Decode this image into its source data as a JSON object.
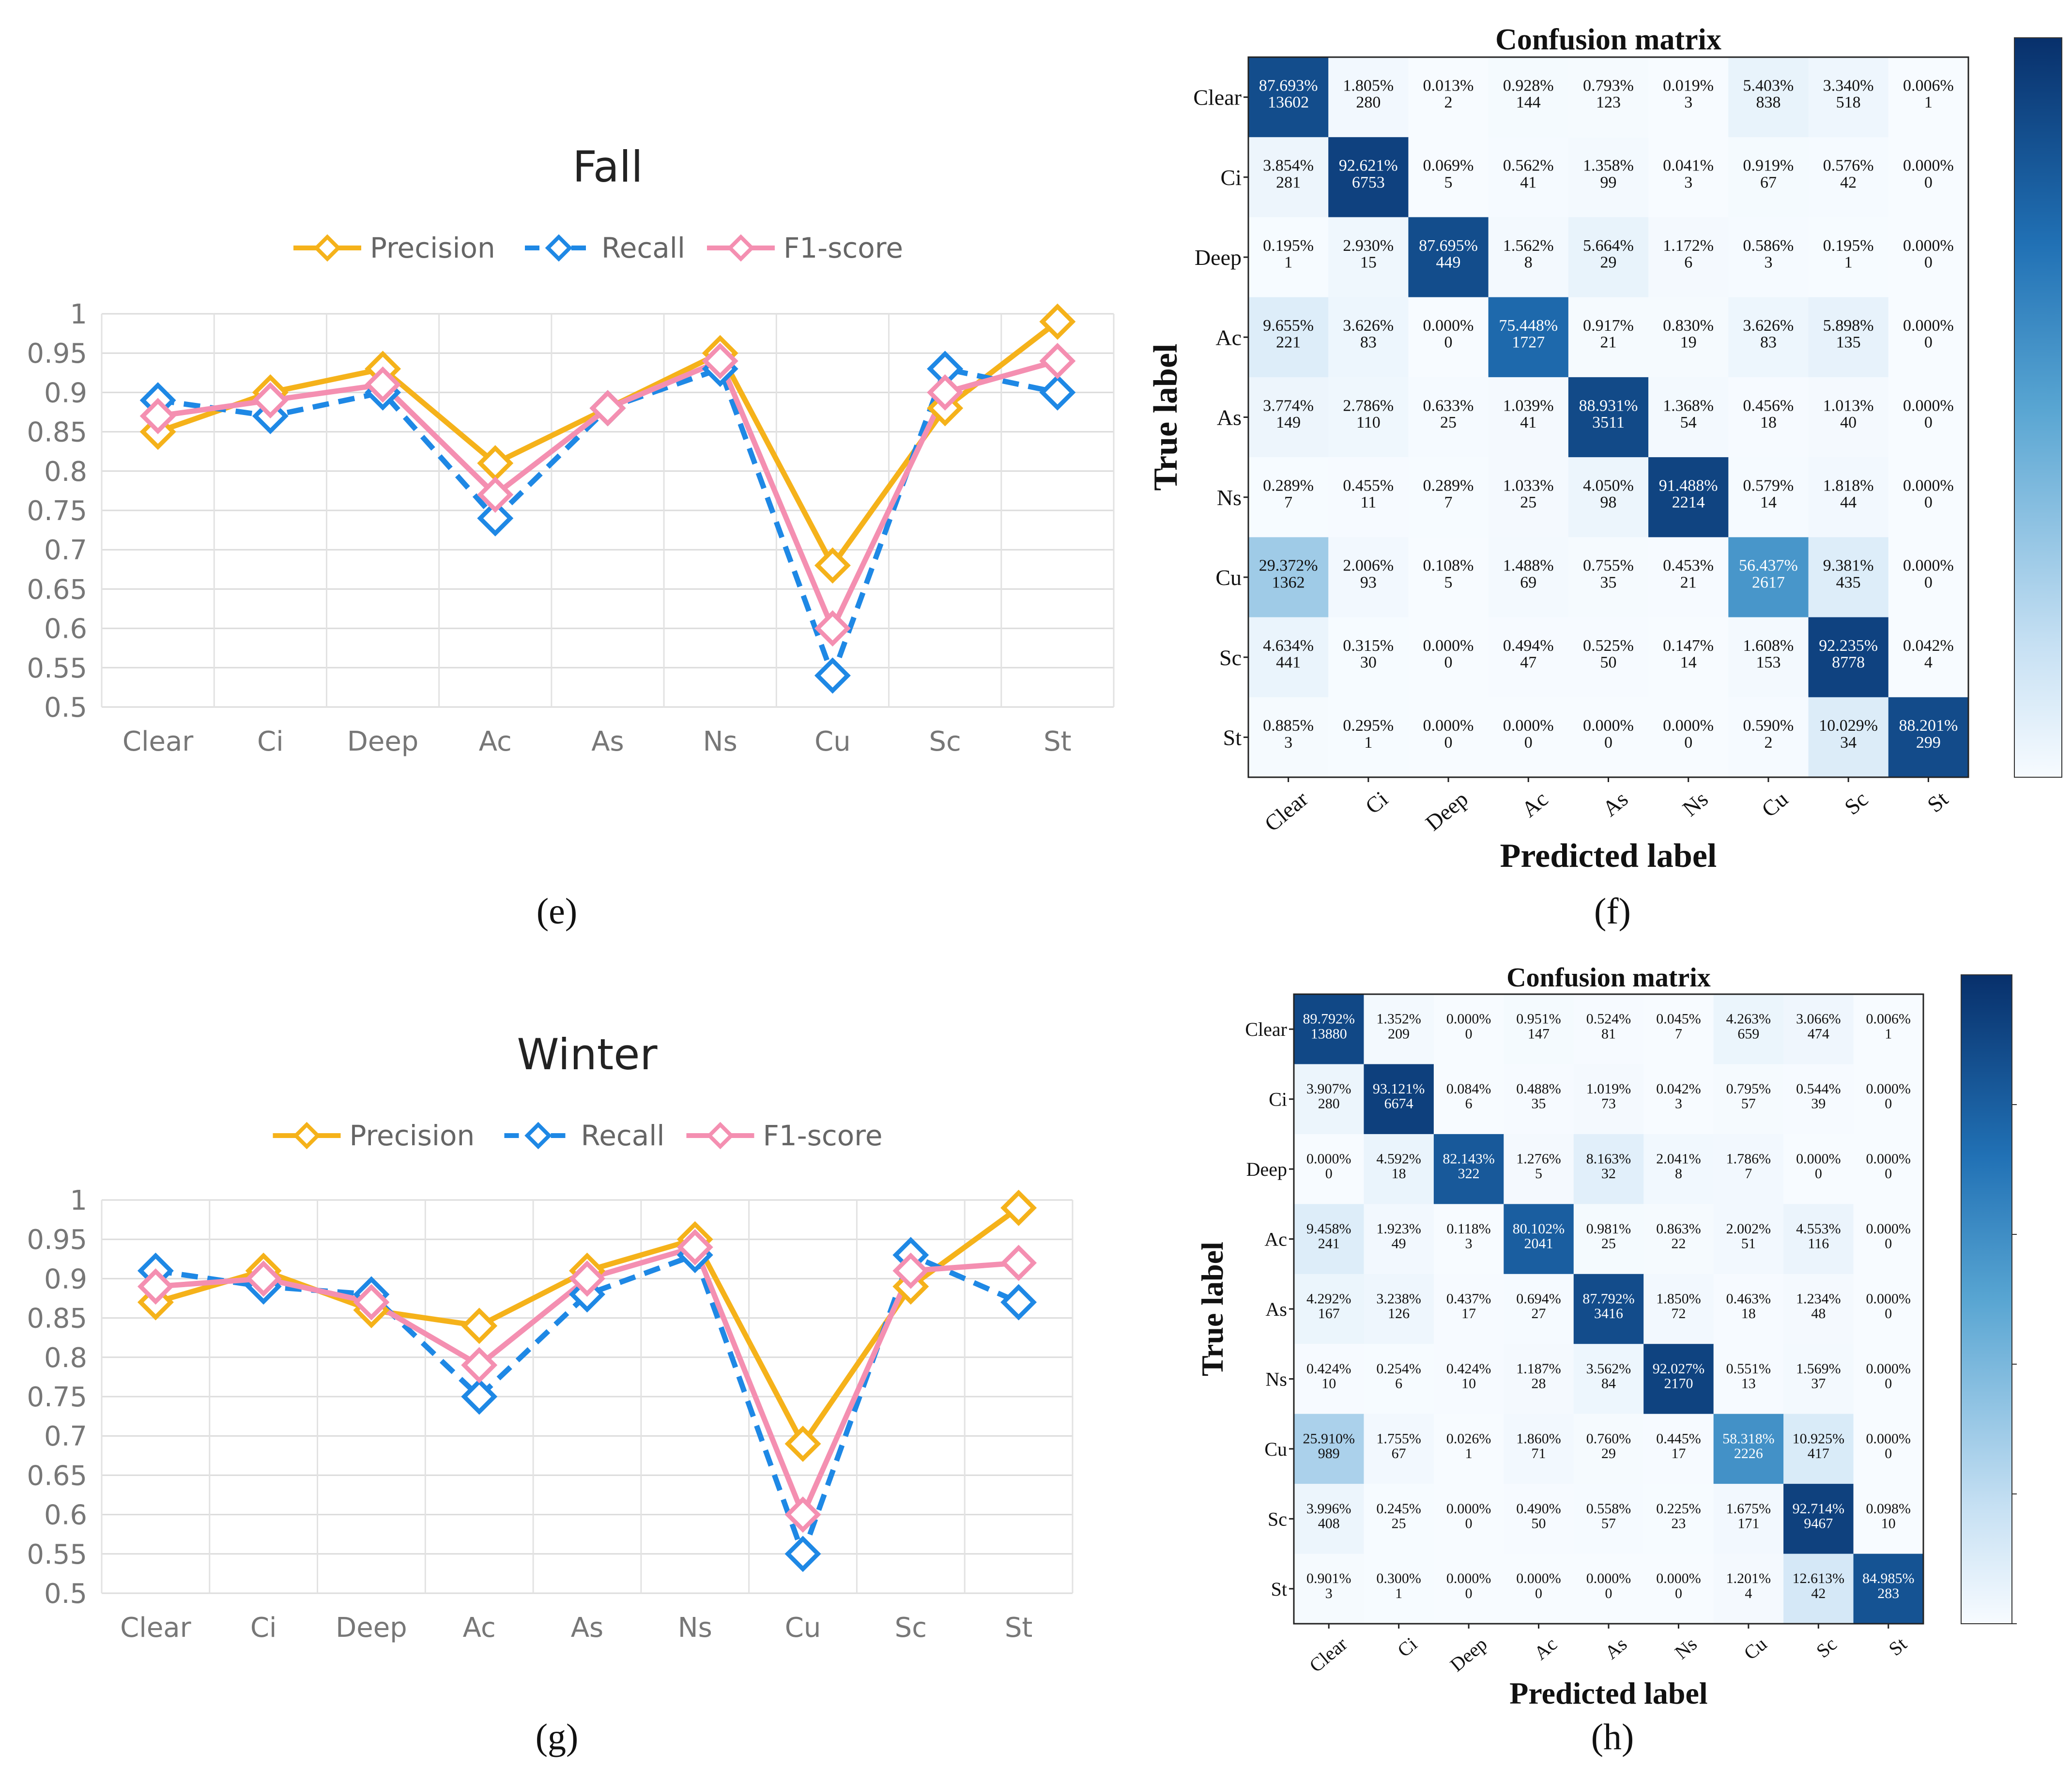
{
  "panel_labels": [
    "(e)",
    "(f)",
    "(g)",
    "(h)"
  ],
  "chart_data": [
    {
      "type": "line",
      "panel": "(e)",
      "title": "Fall",
      "categories": [
        "Clear",
        "Ci",
        "Deep",
        "Ac",
        "As",
        "Ns",
        "Cu",
        "Sc",
        "St"
      ],
      "ylim": [
        0.5,
        1
      ],
      "yticks": [
        "0.5",
        "0.55",
        "0.6",
        "0.65",
        "0.7",
        "0.75",
        "0.8",
        "0.85",
        "0.9",
        "0.95",
        "1"
      ],
      "legend": "top",
      "series": [
        {
          "name": "Precision",
          "color": "#F5B21A",
          "dash": false,
          "values": [
            0.85,
            0.9,
            0.93,
            0.81,
            0.88,
            0.95,
            0.68,
            0.88,
            0.99
          ]
        },
        {
          "name": "Recall",
          "color": "#1E88E5",
          "dash": true,
          "values": [
            0.89,
            0.87,
            0.9,
            0.74,
            0.88,
            0.93,
            0.54,
            0.93,
            0.9
          ]
        },
        {
          "name": "F1-score",
          "color": "#F48FB1",
          "dash": false,
          "values": [
            0.87,
            0.89,
            0.91,
            0.77,
            0.88,
            0.94,
            0.6,
            0.9,
            0.94
          ]
        }
      ]
    },
    {
      "type": "heatmap",
      "panel": "(f)",
      "title": "Confusion matrix",
      "xlabel": "Predicted label",
      "ylabel": "True label",
      "labels": [
        "Clear",
        "Ci",
        "Deep",
        "Ac",
        "As",
        "Ns",
        "Cu",
        "Sc",
        "St"
      ],
      "colorbar_range": [
        0,
        1
      ],
      "percent": [
        [
          "87.693%",
          "1.805%",
          "0.013%",
          "0.928%",
          "0.793%",
          "0.019%",
          "5.403%",
          "3.340%",
          "0.006%"
        ],
        [
          "3.854%",
          "92.621%",
          "0.069%",
          "0.562%",
          "1.358%",
          "0.041%",
          "0.919%",
          "0.576%",
          "0.000%"
        ],
        [
          "0.195%",
          "2.930%",
          "87.695%",
          "1.562%",
          "5.664%",
          "1.172%",
          "0.586%",
          "0.195%",
          "0.000%"
        ],
        [
          "9.655%",
          "3.626%",
          "0.000%",
          "75.448%",
          "0.917%",
          "0.830%",
          "3.626%",
          "5.898%",
          "0.000%"
        ],
        [
          "3.774%",
          "2.786%",
          "0.633%",
          "1.039%",
          "88.931%",
          "1.368%",
          "0.456%",
          "1.013%",
          "0.000%"
        ],
        [
          "0.289%",
          "0.455%",
          "0.289%",
          "1.033%",
          "4.050%",
          "91.488%",
          "0.579%",
          "1.818%",
          "0.000%"
        ],
        [
          "29.372%",
          "2.006%",
          "0.108%",
          "1.488%",
          "0.755%",
          "0.453%",
          "56.437%",
          "9.381%",
          "0.000%"
        ],
        [
          "4.634%",
          "0.315%",
          "0.000%",
          "0.494%",
          "0.525%",
          "0.147%",
          "1.608%",
          "92.235%",
          "0.042%"
        ],
        [
          "0.885%",
          "0.295%",
          "0.000%",
          "0.000%",
          "0.000%",
          "0.000%",
          "0.590%",
          "10.029%",
          "88.201%"
        ]
      ],
      "counts": [
        [
          "13602",
          "280",
          "2",
          "144",
          "123",
          "3",
          "838",
          "518",
          "1"
        ],
        [
          "281",
          "6753",
          "5",
          "41",
          "99",
          "3",
          "67",
          "42",
          "0"
        ],
        [
          "1",
          "15",
          "449",
          "8",
          "29",
          "6",
          "3",
          "1",
          "0"
        ],
        [
          "221",
          "83",
          "0",
          "1727",
          "21",
          "19",
          "83",
          "135",
          "0"
        ],
        [
          "149",
          "110",
          "25",
          "41",
          "3511",
          "54",
          "18",
          "40",
          "0"
        ],
        [
          "7",
          "11",
          "7",
          "25",
          "98",
          "2214",
          "14",
          "44",
          "0"
        ],
        [
          "1362",
          "93",
          "5",
          "69",
          "35",
          "21",
          "2617",
          "435",
          "0"
        ],
        [
          "441",
          "30",
          "0",
          "47",
          "50",
          "14",
          "153",
          "8778",
          "4"
        ],
        [
          "3",
          "1",
          "0",
          "0",
          "0",
          "0",
          "2",
          "34",
          "299"
        ]
      ]
    },
    {
      "type": "line",
      "panel": "(g)",
      "title": "Winter",
      "categories": [
        "Clear",
        "Ci",
        "Deep",
        "Ac",
        "As",
        "Ns",
        "Cu",
        "Sc",
        "St"
      ],
      "ylim": [
        0.5,
        1
      ],
      "yticks": [
        "0.5",
        "0.55",
        "0.6",
        "0.65",
        "0.7",
        "0.75",
        "0.8",
        "0.85",
        "0.9",
        "0.95",
        "1"
      ],
      "legend": "top",
      "series": [
        {
          "name": "Precision",
          "color": "#F5B21A",
          "dash": false,
          "values": [
            0.87,
            0.91,
            0.86,
            0.84,
            0.91,
            0.95,
            0.69,
            0.89,
            0.99
          ]
        },
        {
          "name": "Recall",
          "color": "#1E88E5",
          "dash": true,
          "values": [
            0.91,
            0.89,
            0.88,
            0.75,
            0.88,
            0.93,
            0.55,
            0.93,
            0.87
          ]
        },
        {
          "name": "F1-score",
          "color": "#F48FB1",
          "dash": false,
          "values": [
            0.89,
            0.9,
            0.87,
            0.79,
            0.9,
            0.94,
            0.6,
            0.91,
            0.92
          ]
        }
      ]
    },
    {
      "type": "heatmap",
      "panel": "(h)",
      "title": "Confusion matrix",
      "xlabel": "Predicted label",
      "ylabel": "True label",
      "labels": [
        "Clear",
        "Ci",
        "Deep",
        "Ac",
        "As",
        "Ns",
        "Cu",
        "Sc",
        "St"
      ],
      "colorbar_range": [
        0,
        1
      ],
      "percent": [
        [
          "89.792%",
          "1.352%",
          "0.000%",
          "0.951%",
          "0.524%",
          "0.045%",
          "4.263%",
          "3.066%",
          "0.006%"
        ],
        [
          "3.907%",
          "93.121%",
          "0.084%",
          "0.488%",
          "1.019%",
          "0.042%",
          "0.795%",
          "0.544%",
          "0.000%"
        ],
        [
          "0.000%",
          "4.592%",
          "82.143%",
          "1.276%",
          "8.163%",
          "2.041%",
          "1.786%",
          "0.000%",
          "0.000%"
        ],
        [
          "9.458%",
          "1.923%",
          "0.118%",
          "80.102%",
          "0.981%",
          "0.863%",
          "2.002%",
          "4.553%",
          "0.000%"
        ],
        [
          "4.292%",
          "3.238%",
          "0.437%",
          "0.694%",
          "87.792%",
          "1.850%",
          "0.463%",
          "1.234%",
          "0.000%"
        ],
        [
          "0.424%",
          "0.254%",
          "0.424%",
          "1.187%",
          "3.562%",
          "92.027%",
          "0.551%",
          "1.569%",
          "0.000%"
        ],
        [
          "25.910%",
          "1.755%",
          "0.026%",
          "1.860%",
          "0.760%",
          "0.445%",
          "58.318%",
          "10.925%",
          "0.000%"
        ],
        [
          "3.996%",
          "0.245%",
          "0.000%",
          "0.490%",
          "0.558%",
          "0.225%",
          "1.675%",
          "92.714%",
          "0.098%"
        ],
        [
          "0.901%",
          "0.300%",
          "0.000%",
          "0.000%",
          "0.000%",
          "0.000%",
          "1.201%",
          "12.613%",
          "84.985%"
        ]
      ],
      "counts": [
        [
          "13880",
          "209",
          "0",
          "147",
          "81",
          "7",
          "659",
          "474",
          "1"
        ],
        [
          "280",
          "6674",
          "6",
          "35",
          "73",
          "3",
          "57",
          "39",
          "0"
        ],
        [
          "0",
          "18",
          "322",
          "5",
          "32",
          "8",
          "7",
          "0",
          "0"
        ],
        [
          "241",
          "49",
          "3",
          "2041",
          "25",
          "22",
          "51",
          "116",
          "0"
        ],
        [
          "167",
          "126",
          "17",
          "27",
          "3416",
          "72",
          "18",
          "48",
          "0"
        ],
        [
          "10",
          "6",
          "10",
          "28",
          "84",
          "2170",
          "13",
          "37",
          "0"
        ],
        [
          "989",
          "67",
          "1",
          "71",
          "29",
          "17",
          "2226",
          "417",
          "0"
        ],
        [
          "408",
          "25",
          "0",
          "50",
          "57",
          "23",
          "171",
          "9467",
          "10"
        ],
        [
          "3",
          "1",
          "0",
          "0",
          "0",
          "0",
          "4",
          "42",
          "283"
        ]
      ]
    }
  ]
}
